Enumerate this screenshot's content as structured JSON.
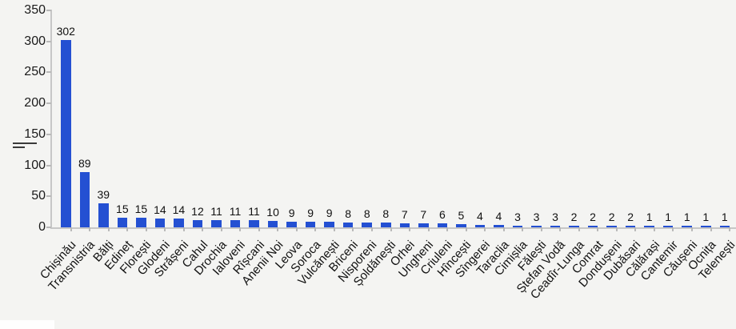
{
  "chart_data": {
    "type": "bar",
    "title": "",
    "xlabel": "",
    "ylabel": "",
    "categories": [
      "Chișinău",
      "Transnistria",
      "Bălți",
      "Edineț",
      "Florești",
      "Glodeni",
      "Strășeni",
      "Cahul",
      "Drochia",
      "Ialoveni",
      "Rîșcani",
      "Anenii Noi",
      "Leova",
      "Soroca",
      "Vulcănești",
      "Briceni",
      "Nisporeni",
      "Șoldănești",
      "Orhei",
      "Ungheni",
      "Criuleni",
      "Hîncești",
      "Sîngerei",
      "Taraclia",
      "Cimișlia",
      "Fălești",
      "Ștefan Vodă",
      "Ceadîr-Lunga",
      "Comrat",
      "Dondușeni",
      "Dubăsari",
      "Călărași",
      "Cantemir",
      "Căușeni",
      "Ocnița",
      "Telenești"
    ],
    "values": [
      302,
      89,
      39,
      15,
      15,
      14,
      14,
      12,
      11,
      11,
      11,
      10,
      9,
      9,
      9,
      8,
      8,
      8,
      7,
      7,
      6,
      5,
      4,
      4,
      3,
      3,
      3,
      2,
      2,
      2,
      2,
      1,
      1,
      1,
      1,
      1
    ],
    "value_labels_shown": true,
    "ylim": [
      0,
      350
    ],
    "yticks": [
      0,
      50,
      100,
      150,
      200,
      250,
      300,
      350
    ],
    "grid": "off",
    "legend": "none",
    "x_label_rotation_deg": -48,
    "bar_color": "#2450d2",
    "axis_color": "#c7c7c7",
    "background_color": "#f4f4f2",
    "text_color": "#111111"
  },
  "decorations": {
    "left_margin_mark": "double-dash-mark",
    "bottom_left_patch": "white-rectangle"
  }
}
